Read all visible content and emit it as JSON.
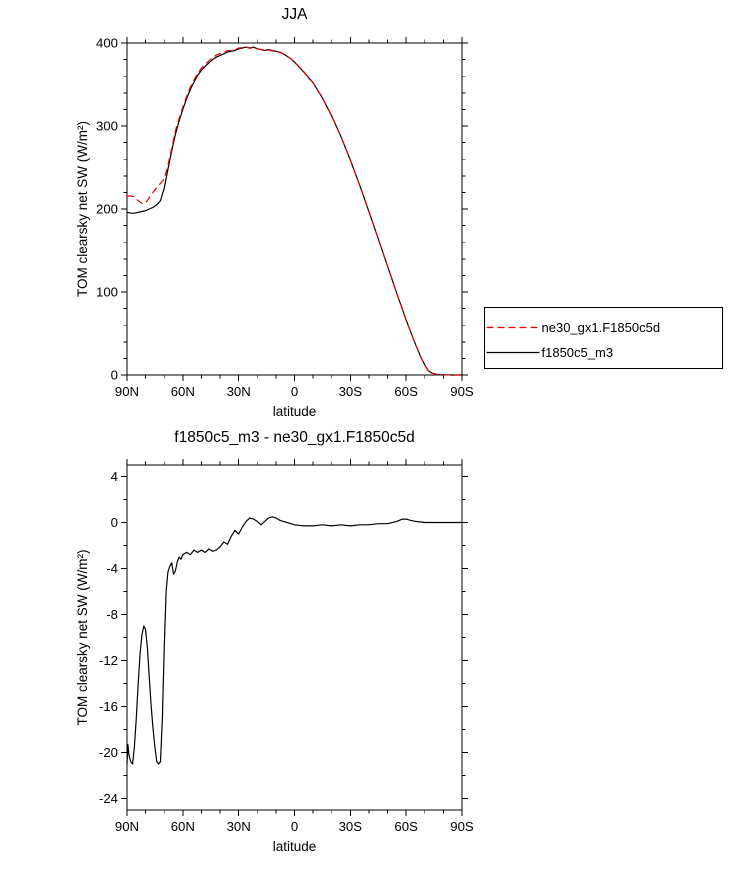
{
  "page": {
    "background": "#ffffff"
  },
  "chart_data": [
    {
      "type": "line",
      "title": "JJA",
      "xlabel": "latitude",
      "ylabel": "TOM clearsky net SW (W/m²)",
      "xlim": [
        90,
        -90
      ],
      "ylim": [
        0,
        400
      ],
      "grid": false,
      "legend_position": "right-outside",
      "xticks": [
        {
          "v": 90,
          "label": "90N"
        },
        {
          "v": 60,
          "label": "60N"
        },
        {
          "v": 30,
          "label": "30N"
        },
        {
          "v": 0,
          "label": "0"
        },
        {
          "v": -30,
          "label": "30S"
        },
        {
          "v": -60,
          "label": "60S"
        },
        {
          "v": -90,
          "label": "90S"
        }
      ],
      "yticks": [
        {
          "v": 0,
          "label": "0"
        },
        {
          "v": 100,
          "label": "100"
        },
        {
          "v": 200,
          "label": "200"
        },
        {
          "v": 300,
          "label": "300"
        },
        {
          "v": 400,
          "label": "400"
        }
      ],
      "xminor_step": 10,
      "yminor_step": 20,
      "series": [
        {
          "name": "ne30_gx1.F1850c5d",
          "color": "#e60000",
          "dash": "7,4",
          "width": 1.2,
          "points": [
            [
              90,
              215.5
            ],
            [
              88,
              215.8
            ],
            [
              86,
              214.5
            ],
            [
              84,
              210
            ],
            [
              82,
              206.8
            ],
            [
              80,
              207.3
            ],
            [
              78,
              213.5
            ],
            [
              76,
              220
            ],
            [
              74,
              225.8
            ],
            [
              72,
              230.8
            ],
            [
              70,
              236
            ],
            [
              68,
              252.3
            ],
            [
              66,
              273.5
            ],
            [
              64,
              294.2
            ],
            [
              62,
              309
            ],
            [
              60,
              322.8
            ],
            [
              58,
              335.6
            ],
            [
              56,
              346.8
            ],
            [
              54,
              355.4
            ],
            [
              52,
              363.6
            ],
            [
              50,
              369.4
            ],
            [
              48,
              374.6
            ],
            [
              46,
              378.3
            ],
            [
              44,
              382.5
            ],
            [
              42,
              385.4
            ],
            [
              40,
              387.1
            ],
            [
              38,
              388.7
            ],
            [
              36,
              390.9
            ],
            [
              34,
              391.2
            ],
            [
              32,
              391.7
            ],
            [
              30,
              394
            ],
            [
              28,
              394.4
            ],
            [
              26,
              394.9
            ],
            [
              24,
              393.6
            ],
            [
              22,
              394.7
            ],
            [
              20,
              392.9
            ],
            [
              18,
              392.2
            ],
            [
              16,
              390.9
            ],
            [
              14,
              391.6
            ],
            [
              12,
              390.5
            ],
            [
              10,
              389.6
            ],
            [
              8,
              388.8
            ],
            [
              6,
              386.9
            ],
            [
              4,
              384
            ],
            [
              2,
              381.1
            ],
            [
              0,
              377.2
            ],
            [
              -5,
              365.3
            ],
            [
              -10,
              352.3
            ],
            [
              -15,
              334.2
            ],
            [
              -20,
              312.3
            ],
            [
              -25,
              287.2
            ],
            [
              -30,
              259.3
            ],
            [
              -35,
              229.2
            ],
            [
              -40,
              197.2
            ],
            [
              -45,
              164.1
            ],
            [
              -50,
              131.1
            ],
            [
              -55,
              97.9
            ],
            [
              -60,
              65.7
            ],
            [
              -65,
              36.9
            ],
            [
              -68,
              21
            ],
            [
              -70,
              12
            ],
            [
              -72,
              5
            ],
            [
              -74,
              2
            ],
            [
              -76,
              1
            ],
            [
              -78,
              0.4
            ],
            [
              -80,
              0.2
            ],
            [
              -85,
              0
            ],
            [
              -90,
              0
            ]
          ]
        },
        {
          "name": "f1850c5_m3",
          "color": "#000000",
          "dash": "",
          "width": 1.2,
          "points": [
            [
              90,
              196
            ],
            [
              88,
              195
            ],
            [
              86,
              195
            ],
            [
              84,
              196
            ],
            [
              82,
              197
            ],
            [
              80,
              198
            ],
            [
              78,
              200
            ],
            [
              76,
              202
            ],
            [
              74,
              205
            ],
            [
              72,
              210
            ],
            [
              70,
              225
            ],
            [
              68,
              248
            ],
            [
              66,
              270
            ],
            [
              64,
              290
            ],
            [
              62,
              306
            ],
            [
              60,
              320
            ],
            [
              58,
              333
            ],
            [
              56,
              344
            ],
            [
              54,
              353
            ],
            [
              52,
              361
            ],
            [
              50,
              367
            ],
            [
              48,
              372
            ],
            [
              46,
              376
            ],
            [
              44,
              380
            ],
            [
              42,
              383
            ],
            [
              40,
              385
            ],
            [
              38,
              387
            ],
            [
              36,
              389
            ],
            [
              34,
              390
            ],
            [
              32,
              391
            ],
            [
              30,
              393
            ],
            [
              28,
              394
            ],
            [
              26,
              395
            ],
            [
              24,
              394
            ],
            [
              22,
              395
            ],
            [
              20,
              393
            ],
            [
              18,
              392
            ],
            [
              16,
              391
            ],
            [
              14,
              392
            ],
            [
              12,
              391
            ],
            [
              10,
              390
            ],
            [
              8,
              389
            ],
            [
              6,
              387
            ],
            [
              4,
              384
            ],
            [
              2,
              381
            ],
            [
              0,
              377
            ],
            [
              -5,
              365
            ],
            [
              -10,
              352
            ],
            [
              -15,
              334
            ],
            [
              -20,
              312
            ],
            [
              -25,
              287
            ],
            [
              -30,
              259
            ],
            [
              -35,
              229
            ],
            [
              -40,
              197
            ],
            [
              -45,
              164
            ],
            [
              -50,
              131
            ],
            [
              -55,
              98
            ],
            [
              -60,
              66
            ],
            [
              -65,
              37
            ],
            [
              -68,
              21
            ],
            [
              -70,
              12
            ],
            [
              -72,
              5
            ],
            [
              -74,
              2
            ],
            [
              -76,
              1
            ],
            [
              -78,
              0.4
            ],
            [
              -80,
              0.2
            ],
            [
              -85,
              0
            ],
            [
              -90,
              0
            ]
          ]
        }
      ]
    },
    {
      "type": "line",
      "title": "f1850c5_m3 - ne30_gx1.F1850c5d",
      "xlabel": "latitude",
      "ylabel": "TOM clearsky net SW (W/m²)",
      "xlim": [
        90,
        -90
      ],
      "ylim": [
        -25,
        5
      ],
      "grid": false,
      "xticks": [
        {
          "v": 90,
          "label": "90N"
        },
        {
          "v": 60,
          "label": "60N"
        },
        {
          "v": 30,
          "label": "30N"
        },
        {
          "v": 0,
          "label": "0"
        },
        {
          "v": -30,
          "label": "30S"
        },
        {
          "v": -60,
          "label": "60S"
        },
        {
          "v": -90,
          "label": "90S"
        }
      ],
      "yticks": [
        {
          "v": 4,
          "label": "4"
        },
        {
          "v": 0,
          "label": "0"
        },
        {
          "v": -4,
          "label": "-4"
        },
        {
          "v": -8,
          "label": "-8"
        },
        {
          "v": -12,
          "label": "-12"
        },
        {
          "v": -16,
          "label": "-16"
        },
        {
          "v": -20,
          "label": "-20"
        },
        {
          "v": -24,
          "label": "-24"
        }
      ],
      "xminor_step": 10,
      "yminor_step": 2,
      "series": [
        {
          "name": "f1850c5_m3 - ne30_gx1.F1850c5d",
          "color": "#000000",
          "dash": "",
          "width": 1.2,
          "points": [
            [
              90,
              -21
            ],
            [
              89.5,
              -19.3
            ],
            [
              89,
              -20.2
            ],
            [
              88,
              -20.8
            ],
            [
              87,
              -21
            ],
            [
              86,
              -19.5
            ],
            [
              85,
              -17
            ],
            [
              84,
              -14
            ],
            [
              83,
              -11.5
            ],
            [
              82,
              -9.8
            ],
            [
              81,
              -9
            ],
            [
              80,
              -9.3
            ],
            [
              79,
              -11
            ],
            [
              78,
              -13.5
            ],
            [
              77,
              -16
            ],
            [
              76,
              -18
            ],
            [
              75,
              -19.5
            ],
            [
              74,
              -20.8
            ],
            [
              73,
              -21
            ],
            [
              72,
              -20.8
            ],
            [
              71,
              -17
            ],
            [
              70,
              -11
            ],
            [
              69,
              -6
            ],
            [
              68,
              -4.3
            ],
            [
              67,
              -3.8
            ],
            [
              66,
              -3.5
            ],
            [
              65,
              -4.5
            ],
            [
              64,
              -4.2
            ],
            [
              63,
              -3.4
            ],
            [
              62,
              -3
            ],
            [
              61,
              -3.2
            ],
            [
              60,
              -2.8
            ],
            [
              58,
              -2.6
            ],
            [
              56,
              -2.8
            ],
            [
              54,
              -2.4
            ],
            [
              52,
              -2.6
            ],
            [
              50,
              -2.4
            ],
            [
              48,
              -2.6
            ],
            [
              46,
              -2.3
            ],
            [
              44,
              -2.5
            ],
            [
              42,
              -2.4
            ],
            [
              40,
              -2.1
            ],
            [
              38,
              -1.7
            ],
            [
              36,
              -1.9
            ],
            [
              34,
              -1.2
            ],
            [
              32,
              -0.7
            ],
            [
              30,
              -1
            ],
            [
              28,
              -0.4
            ],
            [
              26,
              0.1
            ],
            [
              24,
              0.4
            ],
            [
              22,
              0.3
            ],
            [
              20,
              0.1
            ],
            [
              18,
              -0.2
            ],
            [
              16,
              0.1
            ],
            [
              14,
              0.4
            ],
            [
              12,
              0.5
            ],
            [
              10,
              0.4
            ],
            [
              8,
              0.2
            ],
            [
              6,
              0.1
            ],
            [
              4,
              0
            ],
            [
              2,
              -0.1
            ],
            [
              0,
              -0.2
            ],
            [
              -5,
              -0.3
            ],
            [
              -10,
              -0.3
            ],
            [
              -15,
              -0.2
            ],
            [
              -20,
              -0.3
            ],
            [
              -25,
              -0.2
            ],
            [
              -30,
              -0.3
            ],
            [
              -35,
              -0.2
            ],
            [
              -40,
              -0.2
            ],
            [
              -45,
              -0.1
            ],
            [
              -50,
              -0.1
            ],
            [
              -55,
              0.1
            ],
            [
              -58,
              0.3
            ],
            [
              -60,
              0.3
            ],
            [
              -62,
              0.2
            ],
            [
              -65,
              0.1
            ],
            [
              -70,
              0
            ],
            [
              -75,
              0
            ],
            [
              -80,
              0
            ],
            [
              -85,
              0
            ],
            [
              -90,
              0
            ]
          ]
        }
      ]
    }
  ]
}
